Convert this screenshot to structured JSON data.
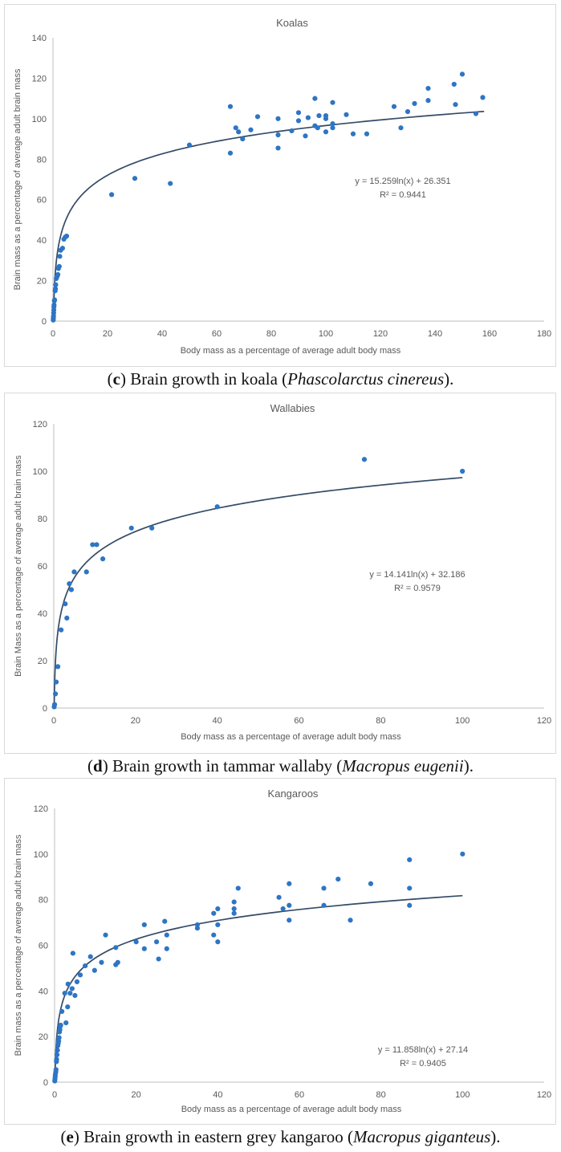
{
  "chart_data": [
    {
      "type": "scatter",
      "title": "Koalas",
      "xlabel": "Body mass as a percentage of average adult body mass",
      "ylabel": "Brain mass as a percentage of average adult brain mass",
      "xlim": [
        0,
        180
      ],
      "ylim": [
        0,
        140
      ],
      "x_ticks": [
        0,
        20,
        40,
        60,
        80,
        100,
        120,
        140,
        160,
        180
      ],
      "y_ticks": [
        0,
        20,
        40,
        60,
        80,
        100,
        120,
        140
      ],
      "grid": false,
      "trendline": {
        "type": "log",
        "a": 15.259,
        "b": 26.351,
        "x_start": 0.15,
        "x_end": 158
      },
      "equation": "y = 15.259ln(x) + 26.351",
      "r2": "R² = 0.9441",
      "caption": {
        "letter": "c",
        "text": " Brain growth in koala (",
        "species": "Phascolarctus cinereus",
        "end": ")."
      },
      "points": [
        [
          0.1,
          0.5
        ],
        [
          0.15,
          1.5
        ],
        [
          0.2,
          2.5
        ],
        [
          0.25,
          4
        ],
        [
          0.3,
          5.5
        ],
        [
          0.35,
          7
        ],
        [
          0.4,
          8
        ],
        [
          0.5,
          10
        ],
        [
          0.6,
          10.5
        ],
        [
          0.8,
          15
        ],
        [
          0.9,
          16
        ],
        [
          1.0,
          18
        ],
        [
          1.2,
          21
        ],
        [
          1.5,
          22
        ],
        [
          1.8,
          23
        ],
        [
          2.0,
          26
        ],
        [
          2.3,
          27
        ],
        [
          2.5,
          32
        ],
        [
          2.8,
          35
        ],
        [
          3.5,
          36
        ],
        [
          4.0,
          40.5
        ],
        [
          4.5,
          41.5
        ],
        [
          5.0,
          42
        ],
        [
          21.5,
          62.5
        ],
        [
          30,
          70.5
        ],
        [
          43,
          68
        ],
        [
          50,
          87
        ],
        [
          65,
          106
        ],
        [
          65,
          83
        ],
        [
          67,
          95.5
        ],
        [
          68,
          93.5
        ],
        [
          69.5,
          90
        ],
        [
          72.5,
          94.5
        ],
        [
          75,
          101
        ],
        [
          82.5,
          100
        ],
        [
          82.5,
          92
        ],
        [
          82.5,
          85.5
        ],
        [
          87.5,
          94
        ],
        [
          90,
          99
        ],
        [
          90,
          103
        ],
        [
          92.5,
          91.5
        ],
        [
          93.5,
          100.5
        ],
        [
          96,
          110
        ],
        [
          96,
          96.5
        ],
        [
          97,
          95.5
        ],
        [
          97.5,
          101.5
        ],
        [
          100,
          101.5
        ],
        [
          100,
          100
        ],
        [
          100,
          93.5
        ],
        [
          102.5,
          108
        ],
        [
          102.5,
          95.5
        ],
        [
          102.5,
          97.5
        ],
        [
          107.5,
          102
        ],
        [
          110,
          92.5
        ],
        [
          115,
          92.5
        ],
        [
          125,
          106
        ],
        [
          127.5,
          95.5
        ],
        [
          130,
          103.5
        ],
        [
          132.5,
          107.5
        ],
        [
          137.5,
          115
        ],
        [
          137.5,
          109
        ],
        [
          147,
          117
        ],
        [
          147.5,
          107
        ],
        [
          150,
          122
        ],
        [
          155,
          102.5
        ],
        [
          157.5,
          110.5
        ]
      ]
    },
    {
      "type": "scatter",
      "title": "Wallabies",
      "xlabel": "Body mass as a percentage of average adult body mass",
      "ylabel": "Brain Mass as a percentage of average adult brain mass",
      "xlim": [
        0,
        120
      ],
      "ylim": [
        0,
        120
      ],
      "x_ticks": [
        0,
        20,
        40,
        60,
        80,
        100,
        120
      ],
      "y_ticks": [
        0,
        20,
        40,
        60,
        80,
        100,
        120
      ],
      "grid": false,
      "trendline": {
        "type": "log",
        "a": 14.141,
        "b": 32.186,
        "x_start": 0.12,
        "x_end": 100
      },
      "equation": "y = 14.141ln(x) + 32.186",
      "r2": "R² = 0.9579",
      "caption": {
        "letter": "d",
        "text": " Brain growth in tammar wallaby (",
        "species": "Macropus eugenii",
        "end": ")."
      },
      "points": [
        [
          0.1,
          0.5
        ],
        [
          0.2,
          1.5
        ],
        [
          0.4,
          6
        ],
        [
          0.6,
          11
        ],
        [
          1.0,
          17.5
        ],
        [
          1.8,
          33
        ],
        [
          2.8,
          44
        ],
        [
          3.2,
          38
        ],
        [
          3.8,
          52.5
        ],
        [
          4.3,
          50
        ],
        [
          5.0,
          57.5
        ],
        [
          8.0,
          57.5
        ],
        [
          9.5,
          69
        ],
        [
          10.5,
          69
        ],
        [
          12,
          63
        ],
        [
          19,
          76
        ],
        [
          24,
          76
        ],
        [
          40,
          85
        ],
        [
          76,
          105
        ],
        [
          100,
          100
        ]
      ]
    },
    {
      "type": "scatter",
      "title": "Kangaroos",
      "xlabel": "Body mass as a percentage of average adult body mass",
      "ylabel": "Brain mass as a percentage of average adult brain mass",
      "xlim": [
        0,
        120
      ],
      "ylim": [
        0,
        120
      ],
      "x_ticks": [
        0,
        20,
        40,
        60,
        80,
        100,
        120
      ],
      "y_ticks": [
        0,
        20,
        40,
        60,
        80,
        100,
        120
      ],
      "grid": false,
      "trendline": {
        "type": "log",
        "a": 11.858,
        "b": 27.14,
        "x_start": 0.12,
        "x_end": 100
      },
      "equation": "y = 11.858ln(x) + 27.14",
      "r2": "R² = 0.9405",
      "caption": {
        "letter": "e",
        "text": " Brain growth in eastern grey kangaroo (",
        "species": "Macropus giganteus",
        "end": ")."
      },
      "points": [
        [
          0.05,
          0.5
        ],
        [
          0.1,
          1.5
        ],
        [
          0.15,
          2.5
        ],
        [
          0.2,
          3.5
        ],
        [
          0.3,
          4.5
        ],
        [
          0.35,
          5.5
        ],
        [
          0.45,
          9
        ],
        [
          0.5,
          10
        ],
        [
          0.6,
          12
        ],
        [
          0.7,
          14
        ],
        [
          0.8,
          16
        ],
        [
          0.9,
          17
        ],
        [
          1.0,
          18
        ],
        [
          1.1,
          19.5
        ],
        [
          1.2,
          22
        ],
        [
          1.3,
          23
        ],
        [
          1.4,
          24.5
        ],
        [
          1.5,
          25
        ],
        [
          1.8,
          31
        ],
        [
          2.5,
          39
        ],
        [
          2.8,
          26
        ],
        [
          3.2,
          33
        ],
        [
          3.3,
          43
        ],
        [
          3.8,
          39
        ],
        [
          4.3,
          41
        ],
        [
          4.5,
          56.5
        ],
        [
          5.0,
          38
        ],
        [
          5.5,
          44
        ],
        [
          6.3,
          47
        ],
        [
          7.5,
          51
        ],
        [
          8.8,
          55
        ],
        [
          9.8,
          49
        ],
        [
          11.5,
          52.5
        ],
        [
          12.5,
          64.5
        ],
        [
          15,
          51.5
        ],
        [
          15,
          59
        ],
        [
          15.5,
          52.5
        ],
        [
          20,
          61.5
        ],
        [
          22,
          69
        ],
        [
          22,
          58.5
        ],
        [
          25,
          61.5
        ],
        [
          25.5,
          54
        ],
        [
          27,
          70.5
        ],
        [
          27.5,
          64.5
        ],
        [
          27.5,
          58.5
        ],
        [
          35,
          69
        ],
        [
          35,
          67.5
        ],
        [
          39,
          64.5
        ],
        [
          39,
          74
        ],
        [
          40,
          76
        ],
        [
          40,
          69
        ],
        [
          40,
          61.5
        ],
        [
          44,
          79
        ],
        [
          44,
          76
        ],
        [
          44,
          74
        ],
        [
          45,
          85
        ],
        [
          55,
          81
        ],
        [
          56,
          76
        ],
        [
          57.5,
          87
        ],
        [
          57.5,
          77.5
        ],
        [
          57.5,
          71
        ],
        [
          66,
          85
        ],
        [
          66,
          77.5
        ],
        [
          69.5,
          89
        ],
        [
          72.5,
          71
        ],
        [
          77.5,
          87
        ],
        [
          87,
          97.5
        ],
        [
          87,
          85
        ],
        [
          87,
          77.5
        ],
        [
          100,
          100
        ]
      ]
    }
  ],
  "colors": {
    "marker": "#2e75c4",
    "trendline": "#344b67",
    "axis_text": "#595959",
    "axis_line": "#bfbfbf",
    "title": "#595959"
  }
}
